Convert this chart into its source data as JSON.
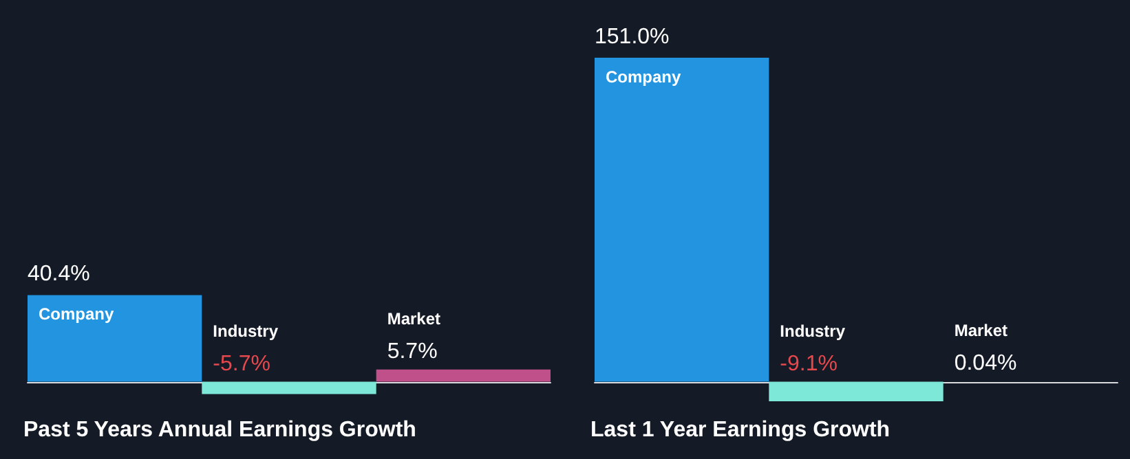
{
  "chart_data": [
    {
      "type": "bar",
      "title": "Past 5 Years Annual Earnings Growth",
      "categories": [
        "Company",
        "Industry",
        "Market"
      ],
      "values": [
        40.4,
        -5.7,
        5.7
      ],
      "colors": [
        "#2394df",
        "#7ee8d8",
        "#c0508a"
      ],
      "value_labels": [
        "40.4%",
        "-5.7%",
        "5.7%"
      ]
    },
    {
      "type": "bar",
      "title": "Last 1 Year Earnings Growth",
      "categories": [
        "Company",
        "Industry",
        "Market"
      ],
      "values": [
        151.0,
        -9.1,
        0.04
      ],
      "colors": [
        "#2394df",
        "#7ee8d8",
        "#c0508a"
      ],
      "value_labels": [
        "151.0%",
        "-9.1%",
        "0.04%"
      ]
    }
  ]
}
